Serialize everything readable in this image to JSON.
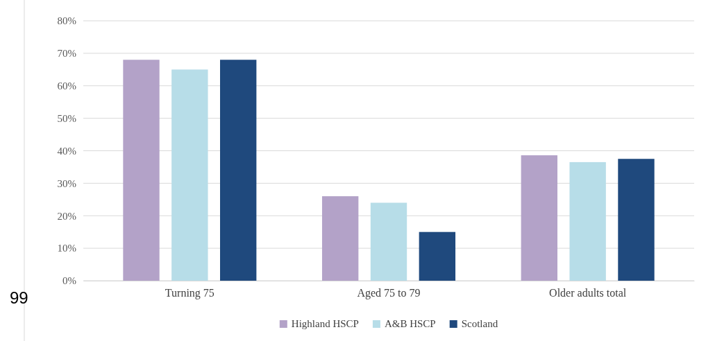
{
  "chart_data": {
    "type": "bar",
    "categories": [
      "Turning 75",
      "Aged 75 to 79",
      "Older adults total"
    ],
    "series": [
      {
        "name": "Highland HSCP",
        "color": "#b3a2c8",
        "values": [
          68,
          26,
          38.6
        ]
      },
      {
        "name": "A&B HSCP",
        "color": "#b7dde8",
        "values": [
          65,
          24,
          36.5
        ]
      },
      {
        "name": "Scotland",
        "color": "#1f497d",
        "values": [
          68,
          15,
          37.5
        ]
      }
    ],
    "ylim": [
      0,
      80
    ],
    "yticks": [
      {
        "value": 0,
        "label": "0%"
      },
      {
        "value": 10,
        "label": "10%"
      },
      {
        "value": 20,
        "label": "20%"
      },
      {
        "value": 30,
        "label": "30%"
      },
      {
        "value": 40,
        "label": "40%"
      },
      {
        "value": 50,
        "label": "50%"
      },
      {
        "value": 60,
        "label": "60%"
      },
      {
        "value": 70,
        "label": "70%"
      },
      {
        "value": 80,
        "label": "80%"
      }
    ],
    "grid": "y",
    "legend": "bottom",
    "annotations": [
      "99"
    ]
  }
}
